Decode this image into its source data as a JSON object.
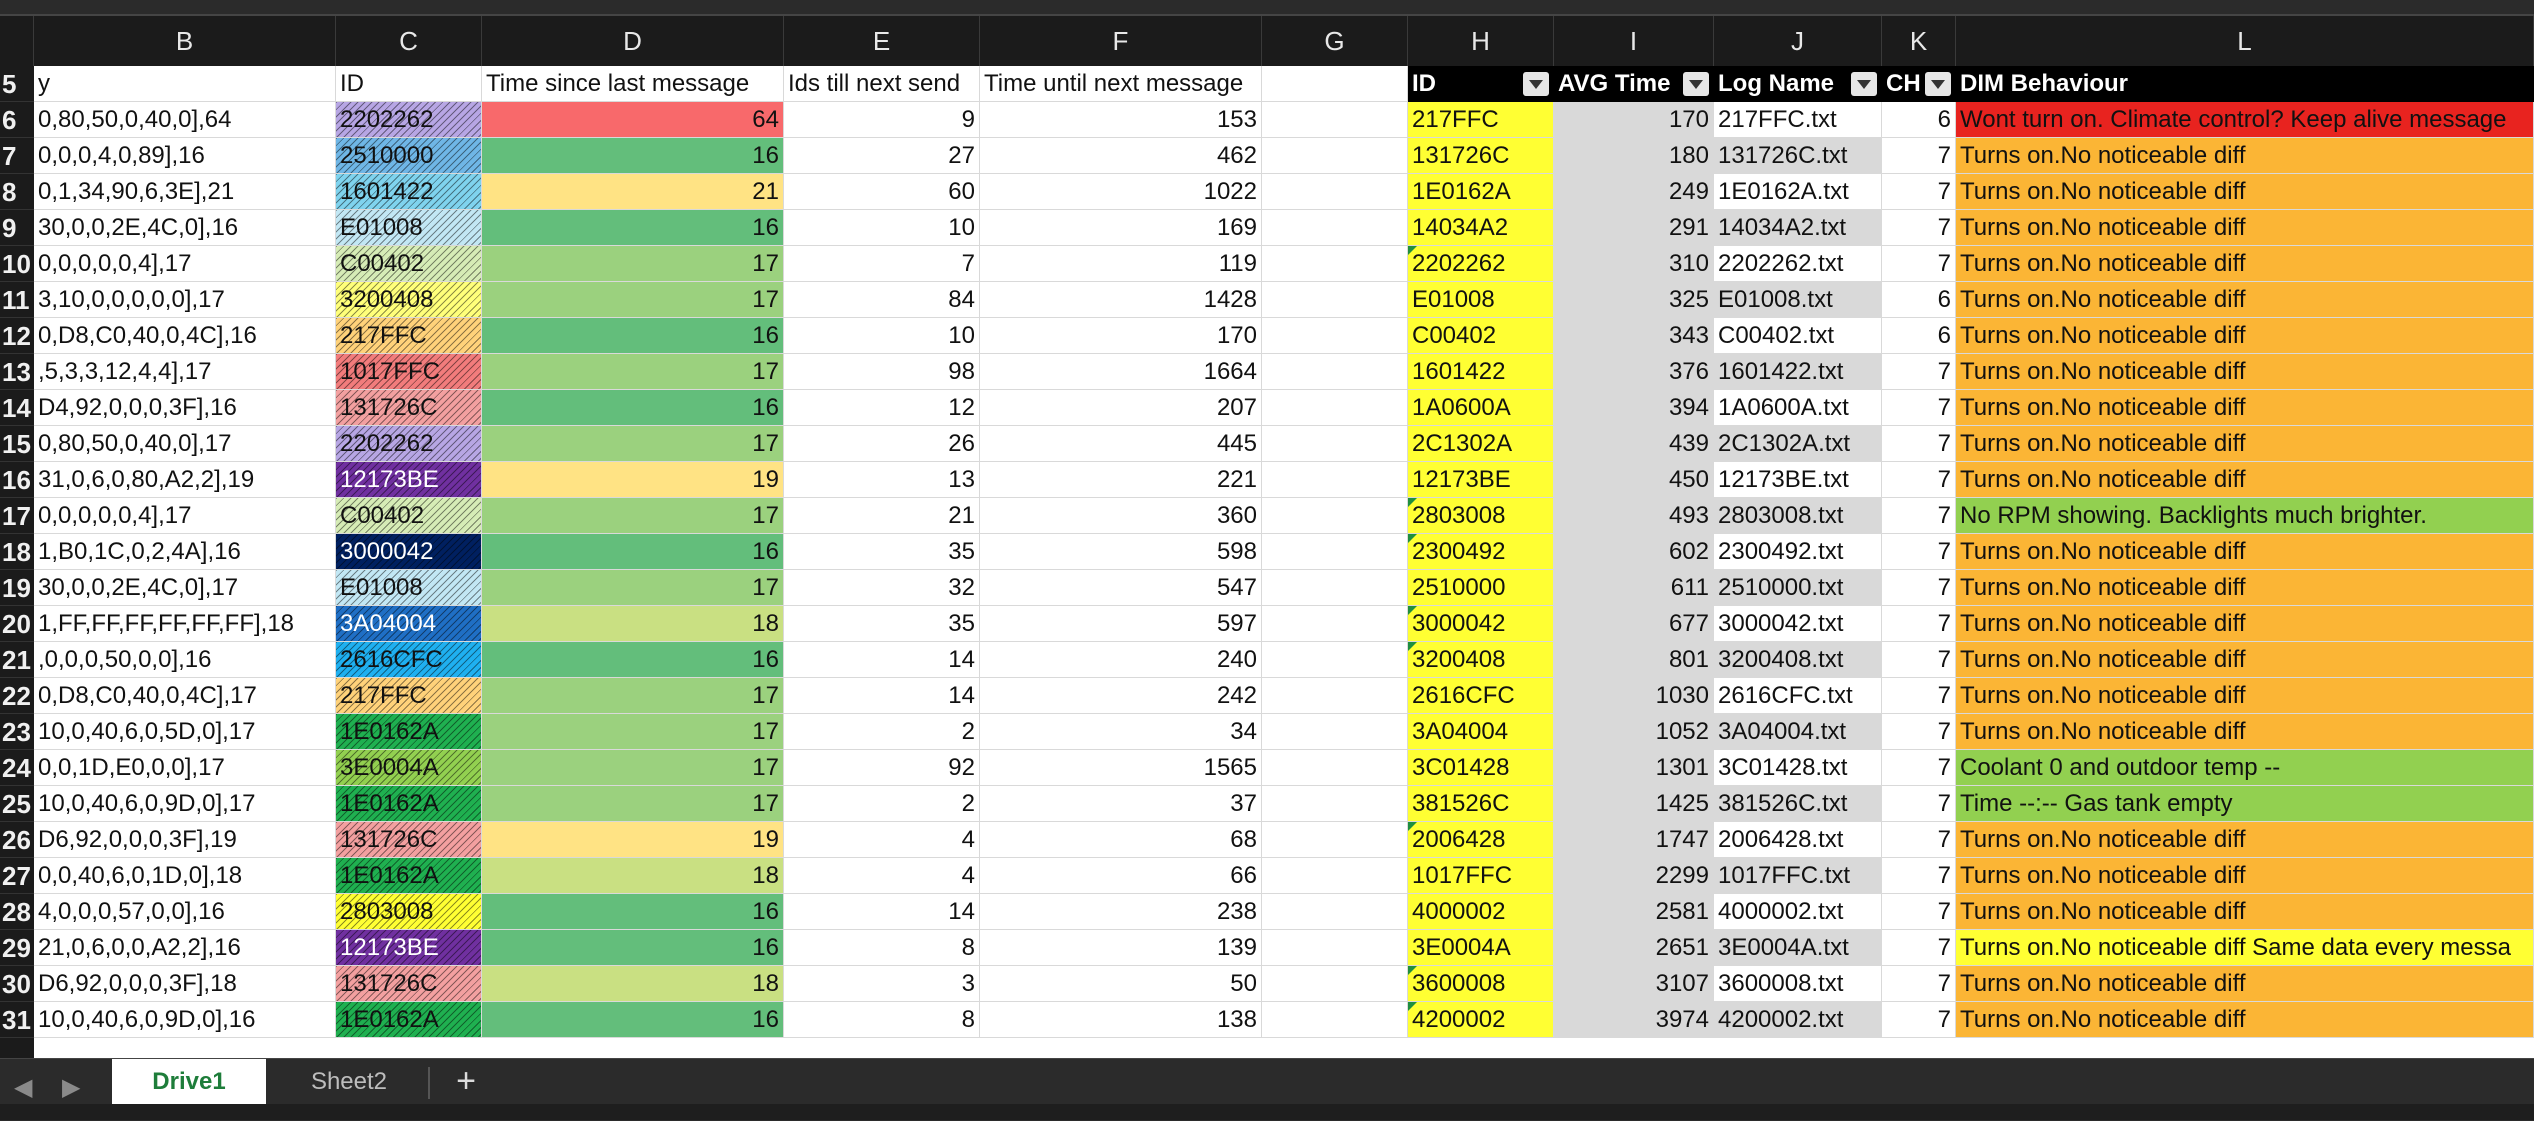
{
  "columns": [
    "B",
    "C",
    "D",
    "E",
    "F",
    "G",
    "H",
    "I",
    "J",
    "K",
    "L"
  ],
  "header_row": {
    "row_number": "5",
    "B": "y",
    "C": "ID",
    "D": "Time since last message",
    "E": "Ids till next send",
    "F": "Time until next message",
    "G": "",
    "H": "ID",
    "I": "AVG Time",
    "J": "Log Name",
    "K": "CH",
    "L": "DIM Behaviour"
  },
  "colors": {
    "yellow": "#ffff33",
    "gray": "#d9d9d9",
    "orange": "#fbb535",
    "red": "#e8231f",
    "green": "#92d050",
    "d_red": "#f8696b",
    "d_dark_green": "#63be7b",
    "d_green": "#9bd17e",
    "d_light_green": "#c9e082",
    "d_yellow": "#ffe384"
  },
  "rows": [
    {
      "n": "6",
      "b": "0,80,50,0,40,0],64",
      "c": "2202262",
      "c_color": "#b7a6e4",
      "d": "64",
      "d_color": "#f8696b",
      "e": "9",
      "f": "153",
      "h": "217FFC",
      "i": "170",
      "j": "217FFC.txt",
      "k": "6",
      "l": "Wont turn on. Climate control? Keep alive message",
      "l_color": "#e8231f",
      "h_tri": false
    },
    {
      "n": "7",
      "b": "0,0,0,4,0,89],16",
      "c": "2510000",
      "c_color": "#6fb6e6",
      "d": "16",
      "d_color": "#63be7b",
      "e": "27",
      "f": "462",
      "h": "131726C",
      "i": "180",
      "j": "131726C.txt",
      "k": "7",
      "l": "Turns on.No noticeable diff",
      "l_color": "#fbb535",
      "h_tri": false
    },
    {
      "n": "8",
      "b": "0,1,34,90,6,3E],21",
      "c": "1601422",
      "c_color": "#7fd3ee",
      "d": "21",
      "d_color": "#ffe384",
      "e": "60",
      "f": "1022",
      "h": "1E0162A",
      "i": "249",
      "j": "1E0162A.txt",
      "k": "7",
      "l": "Turns on.No noticeable diff",
      "l_color": "#fbb535",
      "h_tri": false
    },
    {
      "n": "9",
      "b": "30,0,0,2E,4C,0],16",
      "c": "E01008",
      "c_color": "#c2e7f4",
      "d": "16",
      "d_color": "#63be7b",
      "e": "10",
      "f": "169",
      "h": "14034A2",
      "i": "291",
      "j": "14034A2.txt",
      "k": "7",
      "l": "Turns on.No noticeable diff",
      "l_color": "#fbb535",
      "h_tri": false
    },
    {
      "n": "10",
      "b": "0,0,0,0,0,4],17",
      "c": "C00402",
      "c_color": "#d6ecb6",
      "d": "17",
      "d_color": "#9bd17e",
      "e": "7",
      "f": "119",
      "h": "2202262",
      "i": "310",
      "j": "2202262.txt",
      "k": "7",
      "l": "Turns on.No noticeable diff",
      "l_color": "#fbb535",
      "h_tri": true
    },
    {
      "n": "11",
      "b": "3,10,0,0,0,0,0],17",
      "c": "3200408",
      "c_color": "#ffff7a",
      "d": "17",
      "d_color": "#9bd17e",
      "e": "84",
      "f": "1428",
      "h": "E01008",
      "i": "325",
      "j": "E01008.txt",
      "k": "6",
      "l": "Turns on.No noticeable diff",
      "l_color": "#fbb535",
      "h_tri": false
    },
    {
      "n": "12",
      "b": "0,D8,C0,40,0,4C],16",
      "c": "217FFC",
      "c_color": "#ffd27a",
      "d": "16",
      "d_color": "#63be7b",
      "e": "10",
      "f": "170",
      "h": "C00402",
      "i": "343",
      "j": "C00402.txt",
      "k": "6",
      "l": "Turns on.No noticeable diff",
      "l_color": "#fbb535",
      "h_tri": false
    },
    {
      "n": "13",
      "b": ",5,3,3,12,4,4],17",
      "c": "1017FFC",
      "c_color": "#f27c7c",
      "d": "17",
      "d_color": "#9bd17e",
      "e": "98",
      "f": "1664",
      "h": "1601422",
      "i": "376",
      "j": "1601422.txt",
      "k": "7",
      "l": "Turns on.No noticeable diff",
      "l_color": "#fbb535",
      "h_tri": false
    },
    {
      "n": "14",
      "b": "D4,92,0,0,0,3F],16",
      "c": "131726C",
      "c_color": "#f3a0a0",
      "d": "16",
      "d_color": "#63be7b",
      "e": "12",
      "f": "207",
      "h": "1A0600A",
      "i": "394",
      "j": "1A0600A.txt",
      "k": "7",
      "l": "Turns on.No noticeable diff",
      "l_color": "#fbb535",
      "h_tri": false
    },
    {
      "n": "15",
      "b": "0,80,50,0,40,0],17",
      "c": "2202262",
      "c_color": "#b7a6e4",
      "d": "17",
      "d_color": "#9bd17e",
      "e": "26",
      "f": "445",
      "h": "2C1302A",
      "i": "439",
      "j": "2C1302A.txt",
      "k": "7",
      "l": "Turns on.No noticeable diff",
      "l_color": "#fbb535",
      "h_tri": false
    },
    {
      "n": "16",
      "b": "31,0,6,0,80,A2,2],19",
      "c": "12173BE",
      "c_color": "#7030a0",
      "d": "19",
      "d_color": "#ffe384",
      "e": "13",
      "f": "221",
      "h": "12173BE",
      "i": "450",
      "j": "12173BE.txt",
      "k": "7",
      "l": "Turns on.No noticeable diff",
      "l_color": "#fbb535",
      "h_tri": false
    },
    {
      "n": "17",
      "b": "0,0,0,0,0,4],17",
      "c": "C00402",
      "c_color": "#d6ecb6",
      "d": "17",
      "d_color": "#9bd17e",
      "e": "21",
      "f": "360",
      "h": "2803008",
      "i": "493",
      "j": "2803008.txt",
      "k": "7",
      "l": "No RPM showing. Backlights much brighter.",
      "l_color": "#92d050",
      "h_tri": true
    },
    {
      "n": "18",
      "b": "1,B0,1C,0,2,4A],16",
      "c": "3000042",
      "c_color": "#002060",
      "d": "16",
      "d_color": "#63be7b",
      "e": "35",
      "f": "598",
      "h": "2300492",
      "i": "602",
      "j": "2300492.txt",
      "k": "7",
      "l": "Turns on.No noticeable diff",
      "l_color": "#fbb535",
      "h_tri": true
    },
    {
      "n": "19",
      "b": "30,0,0,2E,4C,0],17",
      "c": "E01008",
      "c_color": "#c2e7f4",
      "d": "17",
      "d_color": "#9bd17e",
      "e": "32",
      "f": "547",
      "h": "2510000",
      "i": "611",
      "j": "2510000.txt",
      "k": "7",
      "l": "Turns on.No noticeable diff",
      "l_color": "#fbb535",
      "h_tri": false
    },
    {
      "n": "20",
      "b": "1,FF,FF,FF,FF,FF,FF],18",
      "c": "3A04004",
      "c_color": "#1f6fc5",
      "d": "18",
      "d_color": "#c9e082",
      "e": "35",
      "f": "597",
      "h": "3000042",
      "i": "677",
      "j": "3000042.txt",
      "k": "7",
      "l": "Turns on.No noticeable diff",
      "l_color": "#fbb535",
      "h_tri": true
    },
    {
      "n": "21",
      "b": ",0,0,0,50,0,0],16",
      "c": "2616CFC",
      "c_color": "#1fb0f0",
      "d": "16",
      "d_color": "#63be7b",
      "e": "14",
      "f": "240",
      "h": "3200408",
      "i": "801",
      "j": "3200408.txt",
      "k": "7",
      "l": "Turns on.No noticeable diff",
      "l_color": "#fbb535",
      "h_tri": true
    },
    {
      "n": "22",
      "b": "0,D8,C0,40,0,4C],17",
      "c": "217FFC",
      "c_color": "#ffd27a",
      "d": "17",
      "d_color": "#9bd17e",
      "e": "14",
      "f": "242",
      "h": "2616CFC",
      "i": "1030",
      "j": "2616CFC.txt",
      "k": "7",
      "l": "Turns on.No noticeable diff",
      "l_color": "#fbb535",
      "h_tri": false
    },
    {
      "n": "23",
      "b": "10,0,40,6,0,5D,0],17",
      "c": "1E0162A",
      "c_color": "#1fb050",
      "d": "17",
      "d_color": "#9bd17e",
      "e": "2",
      "f": "34",
      "h": "3A04004",
      "i": "1052",
      "j": "3A04004.txt",
      "k": "7",
      "l": "Turns on.No noticeable diff",
      "l_color": "#fbb535",
      "h_tri": false
    },
    {
      "n": "24",
      "b": "0,0,1D,E0,0,0],17",
      "c": "3E0004A",
      "c_color": "#92d050",
      "d": "17",
      "d_color": "#9bd17e",
      "e": "92",
      "f": "1565",
      "h": "3C01428",
      "i": "1301",
      "j": "3C01428.txt",
      "k": "7",
      "l": "Coolant 0 and outdoor temp --",
      "l_color": "#92d050",
      "h_tri": false
    },
    {
      "n": "25",
      "b": "10,0,40,6,0,9D,0],17",
      "c": "1E0162A",
      "c_color": "#1fb050",
      "d": "17",
      "d_color": "#9bd17e",
      "e": "2",
      "f": "37",
      "h": "381526C",
      "i": "1425",
      "j": "381526C.txt",
      "k": "7",
      "l": "Time --:-- Gas tank empty",
      "l_color": "#92d050",
      "h_tri": false
    },
    {
      "n": "26",
      "b": "D6,92,0,0,0,3F],19",
      "c": "131726C",
      "c_color": "#f3a0a0",
      "d": "19",
      "d_color": "#ffe384",
      "e": "4",
      "f": "68",
      "h": "2006428",
      "i": "1747",
      "j": "2006428.txt",
      "k": "7",
      "l": "Turns on.No noticeable diff",
      "l_color": "#fbb535",
      "h_tri": true
    },
    {
      "n": "27",
      "b": "0,0,40,6,0,1D,0],18",
      "c": "1E0162A",
      "c_color": "#1fb050",
      "d": "18",
      "d_color": "#c9e082",
      "e": "4",
      "f": "66",
      "h": "1017FFC",
      "i": "2299",
      "j": "1017FFC.txt",
      "k": "7",
      "l": "Turns on.No noticeable diff",
      "l_color": "#fbb535",
      "h_tri": false
    },
    {
      "n": "28",
      "b": "4,0,0,0,57,0,0],16",
      "c": "2803008",
      "c_color": "#ffff33",
      "d": "16",
      "d_color": "#63be7b",
      "e": "14",
      "f": "238",
      "h": "4000002",
      "i": "2581",
      "j": "4000002.txt",
      "k": "7",
      "l": "Turns on.No noticeable diff",
      "l_color": "#fbb535",
      "h_tri": false
    },
    {
      "n": "29",
      "b": "21,0,6,0,0,A2,2],16",
      "c": "12173BE",
      "c_color": "#7030a0",
      "d": "16",
      "d_color": "#63be7b",
      "e": "8",
      "f": "139",
      "h": "3E0004A",
      "i": "2651",
      "j": "3E0004A.txt",
      "k": "7",
      "l": "Turns on.No noticeable diff Same data every messa",
      "l_color": "#ffff33",
      "h_tri": false
    },
    {
      "n": "30",
      "b": "D6,92,0,0,0,3F],18",
      "c": "131726C",
      "c_color": "#f3a0a0",
      "d": "18",
      "d_color": "#c9e082",
      "e": "3",
      "f": "50",
      "h": "3600008",
      "i": "3107",
      "j": "3600008.txt",
      "k": "7",
      "l": "Turns on.No noticeable diff",
      "l_color": "#fbb535",
      "h_tri": true
    },
    {
      "n": "31",
      "b": "10,0,40,6,0,9D,0],16",
      "c": "1E0162A",
      "c_color": "#1fb050",
      "d": "16",
      "d_color": "#63be7b",
      "e": "8",
      "f": "138",
      "h": "4200002",
      "i": "3974",
      "j": "4200002.txt",
      "k": "7",
      "l": "Turns on.No noticeable diff",
      "l_color": "#fbb535",
      "h_tri": true
    }
  ],
  "sheet_tabs": {
    "active": "Drive1",
    "other": "Sheet2",
    "add": "+"
  }
}
